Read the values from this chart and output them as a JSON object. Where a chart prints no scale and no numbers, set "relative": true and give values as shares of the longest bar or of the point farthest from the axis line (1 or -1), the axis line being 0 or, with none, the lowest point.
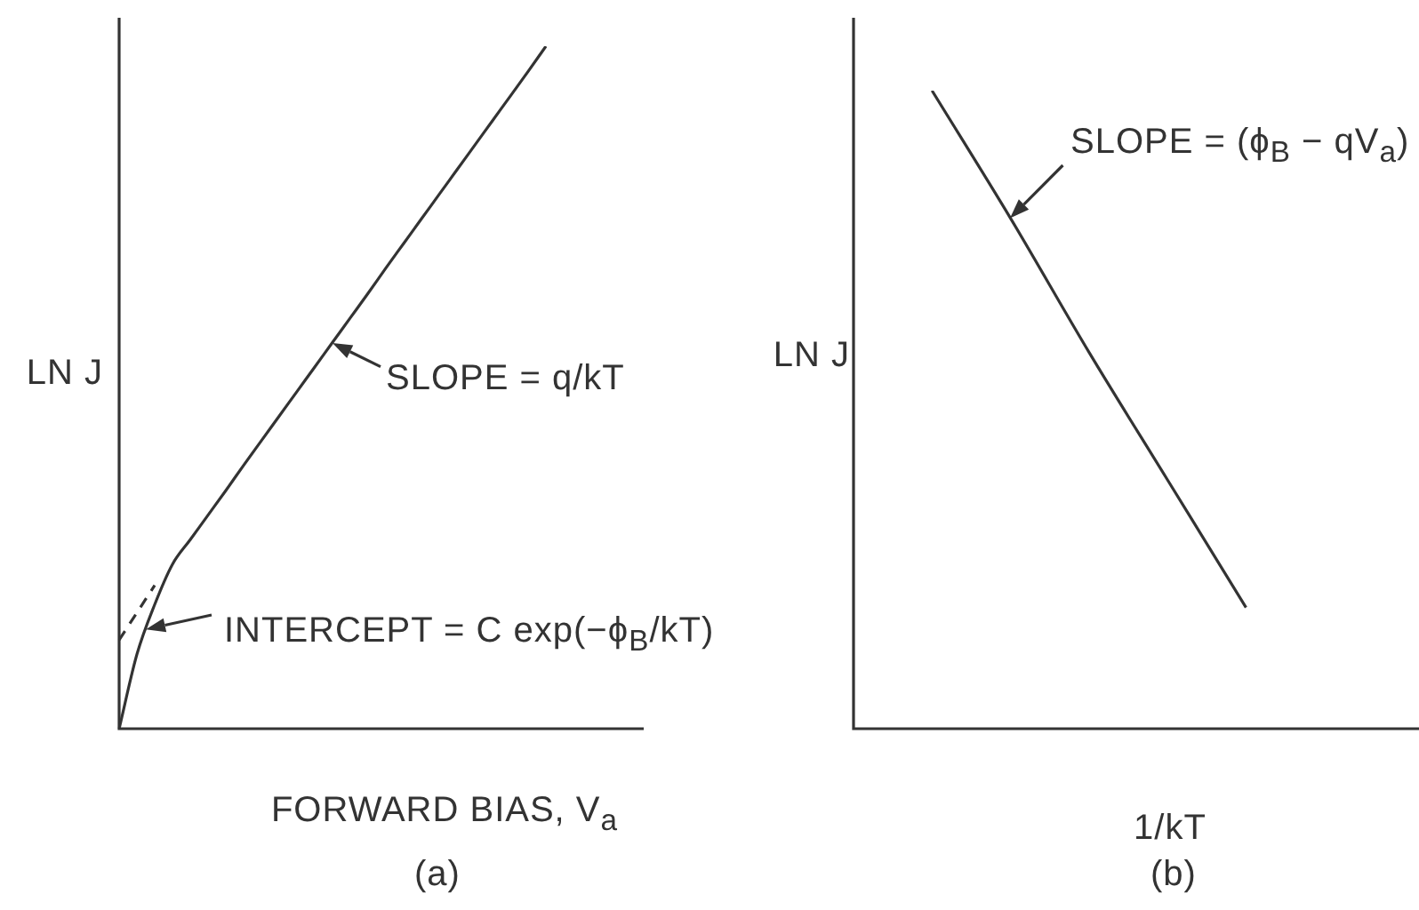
{
  "chart_data": [
    {
      "type": "line",
      "title": "(a)",
      "xlabel": "FORWARD BIAS, V$_{a}$",
      "ylabel": "LN J",
      "relative": true,
      "marker": "none",
      "categories": [
        null,
        null,
        null,
        null,
        null,
        null,
        null,
        null,
        null,
        null,
        null,
        null,
        null,
        null,
        null,
        null,
        null,
        null,
        null,
        null,
        null,
        null,
        null,
        null,
        null,
        null,
        null,
        null,
        null,
        null
      ],
      "series": [
        {
          "color": "#333333",
          "values": [
            0,
            0.109,
            0.182,
            0.241,
            0.277,
            0.313,
            0.349,
            0.386,
            0.422,
            0.458,
            0.494,
            0.53,
            0.566,
            0.602,
            0.638,
            0.675,
            0.711,
            0.747,
            0.783,
            0.819,
            0.855,
            0.891,
            0.927,
            0.963,
            1,
            null,
            null,
            null,
            null,
            null
          ]
        },
        {
          "color": "#333333",
          "line_style": "dashed",
          "values": [
            0.13,
            0.17,
            0.21,
            null,
            null,
            null,
            null,
            null,
            null,
            null,
            null,
            null,
            null,
            null,
            null,
            null,
            null,
            null,
            null,
            null,
            null,
            null,
            null,
            null,
            null,
            null,
            null,
            null,
            null,
            null
          ]
        }
      ],
      "annotations": [
        "SLOPE = q/kT",
        "INTERCEPT = C exp(−ϕ$_{B}$/kT)"
      ]
    },
    {
      "type": "line",
      "title": "(b)",
      "xlabel": "1/kT",
      "ylabel": "LN J",
      "relative": true,
      "marker": "none",
      "categories": [
        null,
        null,
        null,
        null,
        null,
        null,
        null,
        null
      ],
      "series": [
        {
          "color": "#333333",
          "values": [
            null,
            1,
            0.8,
            0.59,
            0.39,
            0.19,
            null,
            null
          ]
        }
      ],
      "annotations": [
        "SLOPE = (ϕ$_{B}$ − qV$_{a}$)"
      ]
    }
  ]
}
